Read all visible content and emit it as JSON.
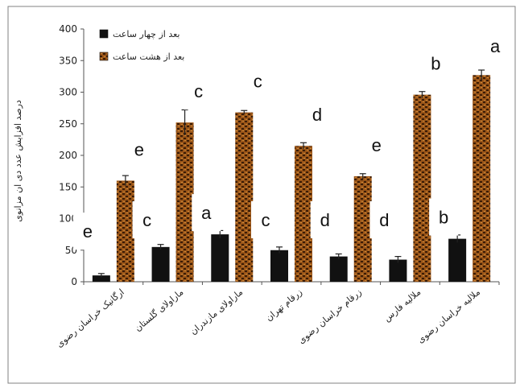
{
  "chart_data": {
    "type": "bar",
    "title": "",
    "xlabel": "",
    "ylabel": "درصد افزایش عدد دی ان مزانوی",
    "ylim": [
      0,
      400
    ],
    "yticks": [
      0,
      50,
      100,
      150,
      200,
      250,
      300,
      350,
      400
    ],
    "grid": false,
    "legend_position": "top-left",
    "categories": [
      "ارگانیک خراسان رضوی",
      "ماراولای گلستان",
      "ماراولای مازندران",
      "زرقام تهران",
      "زرقام خراسان رضوی",
      "ملالیه فارس",
      "ملالیه خراسان رضوی"
    ],
    "series": [
      {
        "name": "بعد از چهار ساعت",
        "color": "#111111",
        "values": [
          10,
          55,
          75,
          50,
          40,
          35,
          68
        ],
        "errors": [
          3,
          4,
          6,
          5,
          4,
          5,
          6
        ],
        "significance": [
          "e",
          "c",
          "a",
          "c",
          "d",
          "d",
          "b"
        ]
      },
      {
        "name": "بعد از هشت ساعت",
        "color": "#9a5518",
        "values": [
          160,
          252,
          268,
          215,
          167,
          296,
          327
        ],
        "errors": [
          8,
          20,
          3,
          5,
          4,
          5,
          8
        ],
        "significance": [
          "e",
          "c",
          "c",
          "d",
          "e",
          "b",
          "a"
        ]
      }
    ]
  }
}
